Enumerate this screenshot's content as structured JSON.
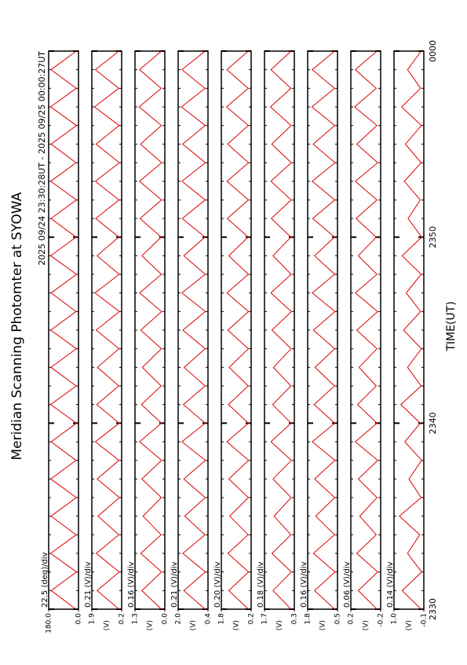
{
  "chart_data": {
    "type": "line",
    "title": "Meridian Scanning Photomter at SYOWA",
    "subtitle": "2025 09/24 23:30:28UT - 2025 09/25 00:00:27UT",
    "xlabel": "TIME(UT)",
    "color": "#e00000",
    "xlim": [
      0,
      30
    ],
    "xticks": [
      {
        "value": 0,
        "label": "2330"
      },
      {
        "value": 10,
        "label": "2340"
      },
      {
        "value": 20,
        "label": "2350"
      },
      {
        "value": 30,
        "label": "0000"
      }
    ],
    "x": [
      0,
      1,
      2,
      3,
      4,
      5,
      6,
      7,
      8,
      9,
      10,
      11,
      12,
      13,
      14,
      15,
      16,
      17,
      18,
      19,
      20,
      21,
      22,
      23,
      24,
      25,
      26,
      27,
      28,
      29,
      30
    ],
    "panels": [
      {
        "label": "22.5 (deg)/div",
        "ylim": [
          0,
          180
        ],
        "yticks": [
          {
            "value": 0,
            "label": "0.0"
          },
          {
            "value": 180,
            "label": "180.0"
          }
        ],
        "values": [
          15,
          165,
          12,
          168,
          14,
          166,
          13,
          167,
          15,
          165,
          12,
          168,
          14,
          166,
          13,
          167,
          15,
          165,
          12,
          168,
          14,
          166,
          13,
          167,
          15,
          165,
          12,
          168,
          14,
          166,
          13
        ]
      },
      {
        "label": "0.21 (V)/div",
        "unit": "(V)",
        "ylim": [
          0.2,
          1.9
        ],
        "yticks": [
          0.2,
          1.9
        ],
        "values": [
          0.35,
          1.6,
          0.34,
          1.65,
          0.36,
          1.55,
          0.33,
          1.6,
          0.35,
          1.7,
          0.34,
          1.62,
          0.36,
          1.58,
          0.35,
          1.65,
          0.33,
          1.72,
          0.34,
          1.6,
          0.36,
          1.68,
          0.35,
          1.7,
          0.33,
          1.66,
          0.34,
          1.75,
          0.36,
          1.7,
          0.35
        ]
      },
      {
        "label": "0.16 (V)/div",
        "unit": "(V)",
        "ylim": [
          0.0,
          1.3
        ],
        "yticks": [
          {
            "value": 0,
            "label": "0.0"
          },
          1.3
        ],
        "values": [
          0.15,
          1.0,
          0.14,
          1.05,
          0.16,
          0.95,
          0.15,
          1.0,
          0.14,
          1.1,
          0.15,
          1.02,
          0.16,
          0.98,
          0.15,
          1.05,
          0.14,
          1.1,
          0.15,
          1.0,
          0.16,
          1.08,
          0.15,
          1.1,
          0.14,
          1.06,
          0.15,
          1.12,
          0.16,
          1.1,
          0.15
        ]
      },
      {
        "label": "0.21 (V)/div",
        "unit": "(V)",
        "ylim": [
          0.4,
          2.0
        ],
        "yticks": [
          0.4,
          {
            "value": 2.0,
            "label": "2.0"
          }
        ],
        "values": [
          0.55,
          1.7,
          0.54,
          1.75,
          0.56,
          1.65,
          0.55,
          1.7,
          0.54,
          1.8,
          0.55,
          1.72,
          0.56,
          1.68,
          0.55,
          1.75,
          0.54,
          1.8,
          0.55,
          1.7,
          0.56,
          1.78,
          0.55,
          1.8,
          0.54,
          1.76,
          0.55,
          1.82,
          0.56,
          1.8,
          0.55
        ]
      },
      {
        "label": "0.20 (V)/div",
        "unit": "(V)",
        "ylim": [
          0.2,
          1.8
        ],
        "yticks": [
          0.2,
          1.8
        ],
        "values": [
          0.35,
          1.4,
          0.34,
          1.45,
          0.36,
          1.35,
          0.35,
          1.4,
          0.34,
          1.5,
          0.35,
          1.42,
          0.36,
          1.38,
          0.35,
          1.45,
          0.34,
          1.5,
          0.35,
          1.4,
          0.36,
          1.48,
          0.35,
          1.5,
          0.34,
          1.46,
          0.35,
          1.52,
          0.36,
          1.5,
          0.35
        ]
      },
      {
        "label": "0.18 (V)/div",
        "unit": "(V)",
        "ylim": [
          0.3,
          1.7
        ],
        "yticks": [
          0.3,
          1.7
        ],
        "values": [
          0.45,
          1.3,
          0.44,
          1.35,
          0.46,
          1.25,
          0.45,
          1.3,
          0.44,
          1.4,
          0.45,
          1.32,
          0.46,
          1.28,
          0.45,
          1.35,
          0.44,
          1.4,
          0.45,
          1.3,
          0.46,
          1.38,
          0.45,
          1.4,
          0.44,
          1.36,
          0.45,
          1.42,
          0.46,
          1.4,
          0.45
        ]
      },
      {
        "label": "0.16 (V)/div",
        "unit": "(V)",
        "ylim": [
          0.5,
          1.8
        ],
        "yticks": [
          0.5,
          1.8
        ],
        "values": [
          0.62,
          1.5,
          0.61,
          1.55,
          0.63,
          1.45,
          0.62,
          1.5,
          0.61,
          1.6,
          0.62,
          1.52,
          0.63,
          1.48,
          0.62,
          1.55,
          0.61,
          1.6,
          0.62,
          1.5,
          0.63,
          1.58,
          0.62,
          1.6,
          0.61,
          1.56,
          0.62,
          1.62,
          0.63,
          1.6,
          0.62
        ]
      },
      {
        "label": "0.06 (V)/div",
        "unit": "(V)",
        "ylim": [
          -0.2,
          0.2
        ],
        "yticks": [
          -0.2,
          0.2
        ],
        "values": [
          -0.15,
          0.1,
          -0.16,
          0.12,
          -0.14,
          0.08,
          -0.15,
          0.1,
          -0.16,
          0.14,
          -0.15,
          0.11,
          -0.14,
          0.09,
          -0.15,
          0.12,
          -0.16,
          0.14,
          -0.15,
          0.1,
          -0.14,
          0.13,
          -0.15,
          0.14,
          -0.16,
          0.12,
          -0.15,
          0.15,
          -0.14,
          0.14,
          -0.15
        ]
      },
      {
        "label": "0.14 (V)/div",
        "unit": "(V)",
        "ylim": [
          -0.1,
          1.0
        ],
        "yticks": [
          -0.1,
          {
            "value": 1.0,
            "label": "1.0"
          }
        ],
        "values": [
          0.0,
          0.7,
          -0.02,
          0.5,
          0.05,
          0.8,
          0.0,
          0.45,
          -0.02,
          0.6,
          0.03,
          0.75,
          0.0,
          0.5,
          -0.01,
          0.65,
          0.02,
          0.55,
          0.0,
          0.7,
          -0.02,
          0.48,
          0.03,
          0.62,
          0.0,
          0.58,
          -0.01,
          0.72,
          0.02,
          0.5,
          0.0
        ]
      }
    ]
  }
}
